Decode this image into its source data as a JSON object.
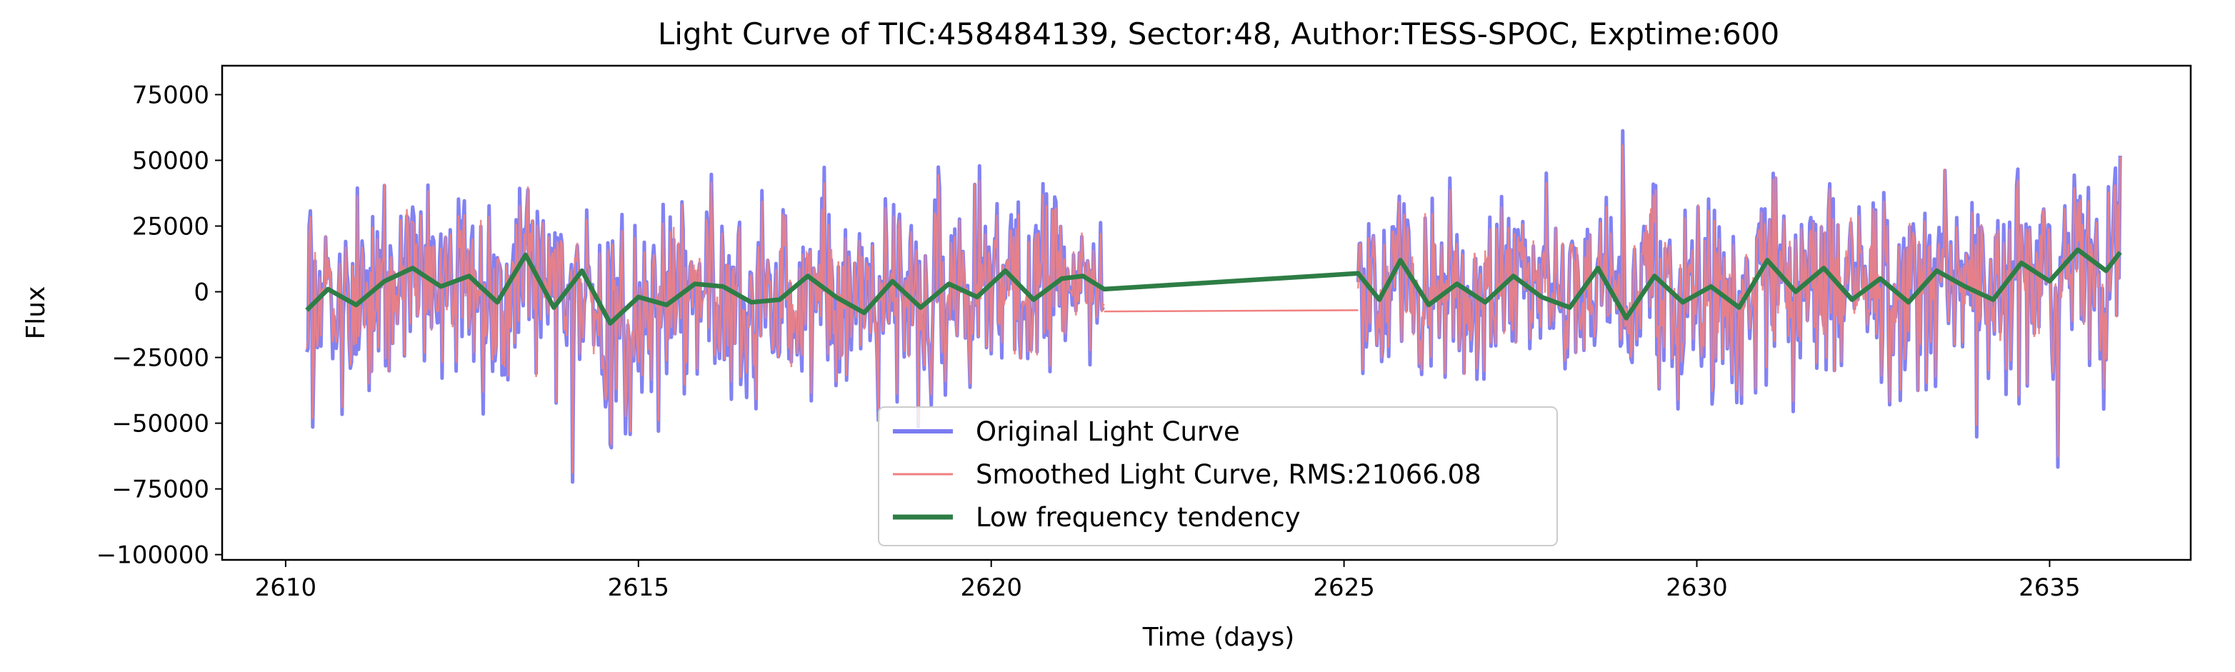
{
  "chart_data": {
    "type": "line",
    "title": "Light Curve of TIC:458484139, Sector:48, Author:TESS-SPOC, Exptime:600",
    "xlabel": "Time (days)",
    "ylabel": "Flux",
    "xlim": [
      2609.1,
      2637.0
    ],
    "ylim": [
      -102000,
      86000
    ],
    "xticks": [
      2610,
      2615,
      2620,
      2625,
      2630,
      2635
    ],
    "xtick_labels": [
      "2610",
      "2615",
      "2620",
      "2625",
      "2630",
      "2635"
    ],
    "yticks": [
      -100000,
      -75000,
      -50000,
      -25000,
      0,
      25000,
      50000,
      75000
    ],
    "ytick_labels": [
      "−100000",
      "−75000",
      "−50000",
      "−25000",
      "0",
      "25000",
      "50000",
      "75000"
    ],
    "grid": false,
    "legend_position": "lower-center",
    "segments": [
      [
        2610.3,
        2621.6
      ],
      [
        2625.2,
        2636.0
      ]
    ],
    "series": [
      {
        "name": "Original Light Curve",
        "color": "#7b7bf2",
        "style": "noisy-flux",
        "approx_range": [
          -94000,
          77000
        ],
        "approx_std": 21000
      },
      {
        "name": "Smoothed Light Curve, RMS:21066.08",
        "color": "#f08080",
        "style": "noisy-flux",
        "rms": 21066.08,
        "gap_connector": [
          [
            2621.6,
            -7500
          ],
          [
            2625.2,
            -7000
          ]
        ]
      },
      {
        "name": "Low frequency tendency",
        "color": "#2e7d45",
        "style": "trend",
        "x": [
          2610.3,
          2610.6,
          2611.0,
          2611.4,
          2611.8,
          2612.2,
          2612.6,
          2613.0,
          2613.4,
          2613.8,
          2614.2,
          2614.6,
          2615.0,
          2615.4,
          2615.8,
          2616.2,
          2616.6,
          2617.0,
          2617.4,
          2617.8,
          2618.2,
          2618.6,
          2619.0,
          2619.4,
          2619.8,
          2620.2,
          2620.6,
          2621.0,
          2621.3,
          2621.6,
          2625.2,
          2625.5,
          2625.8,
          2626.2,
          2626.6,
          2627.0,
          2627.4,
          2627.8,
          2628.2,
          2628.6,
          2629.0,
          2629.4,
          2629.8,
          2630.2,
          2630.6,
          2631.0,
          2631.4,
          2631.8,
          2632.2,
          2632.6,
          2633.0,
          2633.4,
          2633.8,
          2634.2,
          2634.6,
          2635.0,
          2635.4,
          2635.8,
          2636.0
        ],
        "y": [
          -7000,
          1000,
          -5000,
          4000,
          9000,
          2000,
          6000,
          -4000,
          14000,
          -6000,
          8000,
          -12000,
          -2000,
          -5000,
          3000,
          2000,
          -4000,
          -3000,
          6000,
          -2000,
          -8000,
          4000,
          -6000,
          3000,
          -2000,
          8000,
          -3000,
          5000,
          6000,
          1000,
          7000,
          -3000,
          12000,
          -5000,
          3000,
          -4000,
          6000,
          -2000,
          -6000,
          9000,
          -10000,
          6000,
          -4000,
          2000,
          -6000,
          12000,
          0,
          9000,
          -3000,
          5000,
          -4000,
          8000,
          2000,
          -3000,
          11000,
          4000,
          16000,
          8000,
          15000
        ]
      }
    ]
  }
}
